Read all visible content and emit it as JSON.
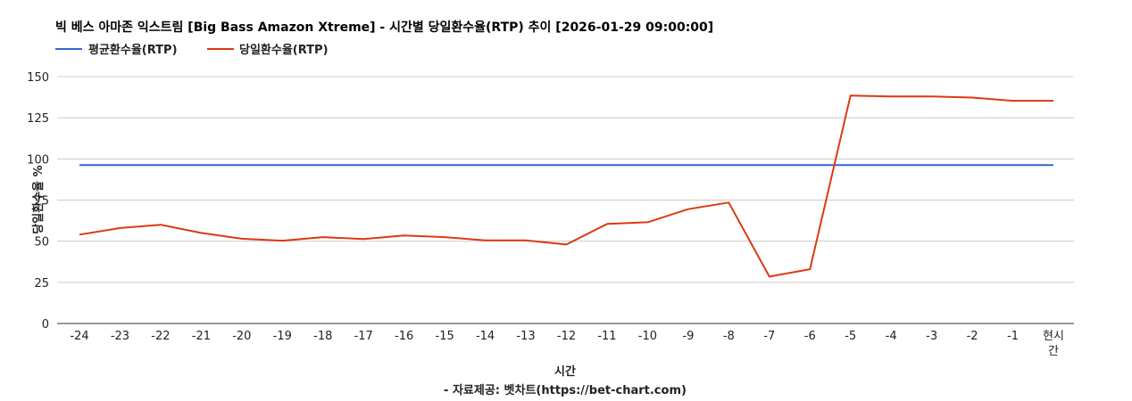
{
  "chart_data": {
    "type": "line",
    "title": "빅 베스 아마존 익스트림 [Big Bass Amazon Xtreme] - 시간별 당일환수율(RTP) 추이 [2026-01-29 09:00:00]",
    "xlabel": "시간",
    "ylabel": "당일환수율 %",
    "source": "- 자료제공: 벳차트(https://bet-chart.com)",
    "legend_position": "top-left",
    "grid": true,
    "ylim": [
      0,
      150
    ],
    "yticks": [
      "0",
      "25",
      "50",
      "75",
      "100",
      "125",
      "150"
    ],
    "categories": [
      "-24",
      "-23",
      "-22",
      "-21",
      "-20",
      "-19",
      "-18",
      "-17",
      "-16",
      "-15",
      "-14",
      "-13",
      "-12",
      "-11",
      "-10",
      "-9",
      "-8",
      "-7",
      "-6",
      "-5",
      "-4",
      "-3",
      "-2",
      "-1",
      "현시간"
    ],
    "series": [
      {
        "name": "평균환수율(RTP)",
        "color": "#3366cc",
        "values": [
          96.3,
          96.3,
          96.3,
          96.3,
          96.3,
          96.3,
          96.3,
          96.3,
          96.3,
          96.3,
          96.3,
          96.3,
          96.3,
          96.3,
          96.3,
          96.3,
          96.3,
          96.3,
          96.3,
          96.3,
          96.3,
          96.3,
          96.3,
          96.3,
          96.3
        ]
      },
      {
        "name": "당일환수율(RTP)",
        "color": "#dc3912",
        "values": [
          54,
          58,
          60,
          55,
          51.5,
          50.3,
          52.5,
          51.3,
          53.5,
          52.5,
          50.5,
          50.5,
          48,
          60.5,
          61.5,
          69.5,
          73.5,
          28.5,
          33,
          138.5,
          138,
          138,
          137.3,
          135.3,
          135.3
        ]
      }
    ]
  }
}
